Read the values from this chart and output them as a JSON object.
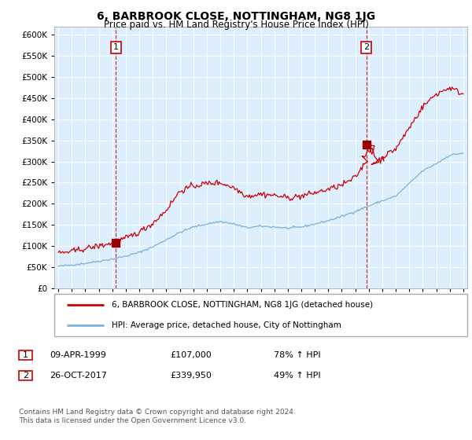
{
  "title": "6, BARBROOK CLOSE, NOTTINGHAM, NG8 1JG",
  "subtitle": "Price paid vs. HM Land Registry's House Price Index (HPI)",
  "legend_line1": "6, BARBROOK CLOSE, NOTTINGHAM, NG8 1JG (detached house)",
  "legend_line2": "HPI: Average price, detached house, City of Nottingham",
  "point1_date": "09-APR-1999",
  "point1_price": "£107,000",
  "point1_hpi": "78% ↑ HPI",
  "point1_x": 1999.27,
  "point1_y": 107000,
  "point2_date": "26-OCT-2017",
  "point2_price": "£339,950",
  "point2_hpi": "49% ↑ HPI",
  "point2_x": 2017.82,
  "point2_y": 339950,
  "red_color": "#cc0000",
  "blue_color": "#7fb0d8",
  "bg_color": "#ddeeff",
  "footnote": "Contains HM Land Registry data © Crown copyright and database right 2024.\nThis data is licensed under the Open Government Licence v3.0.",
  "ylim": [
    0,
    620000
  ],
  "yticks": [
    0,
    50000,
    100000,
    150000,
    200000,
    250000,
    300000,
    350000,
    400000,
    450000,
    500000,
    550000,
    600000
  ],
  "xlim_start": 1994.7,
  "xlim_end": 2025.3
}
